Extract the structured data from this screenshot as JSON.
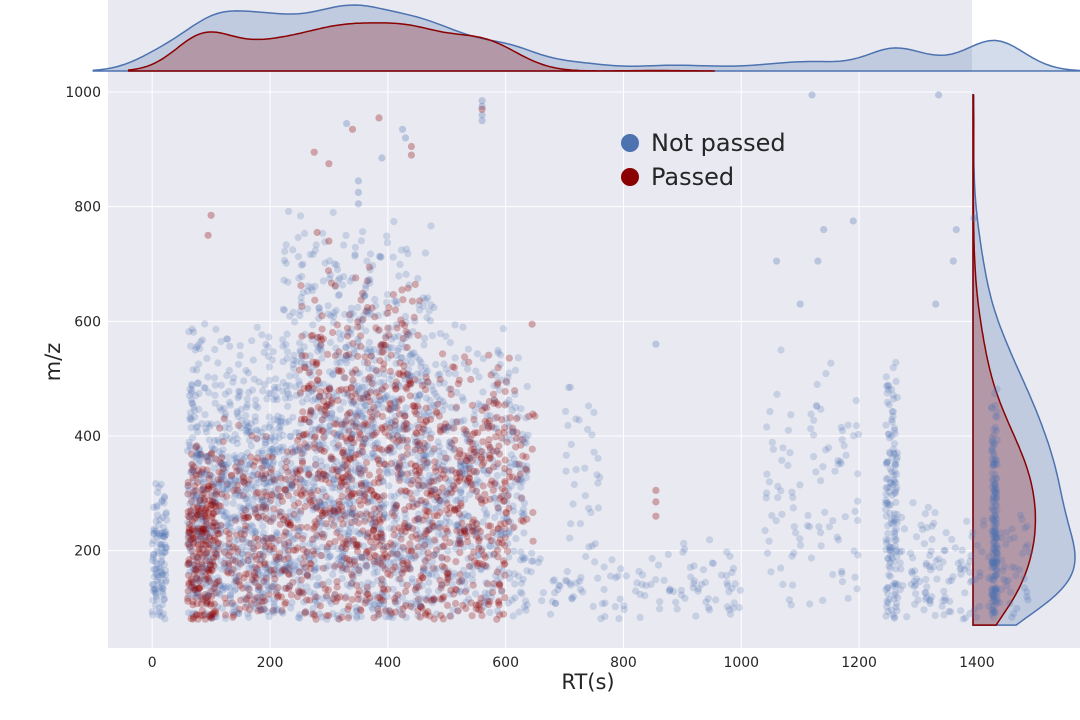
{
  "chart_data": {
    "type": "scatter",
    "title": "",
    "xlabel": "RT(s)",
    "ylabel": "m/z",
    "xlim": [
      -75,
      1575
    ],
    "ylim": [
      30,
      1035
    ],
    "x_ticks": [
      "0",
      "200",
      "400",
      "600",
      "800",
      "1000",
      "1200",
      "1400"
    ],
    "y_ticks": [
      "200",
      "400",
      "600",
      "800",
      "1000"
    ],
    "grid": true,
    "background": "#e9e9f1",
    "legend_position": "top-center",
    "marginals": {
      "top": "kde of RT(s) per series",
      "right": "kde of m/z per series"
    },
    "series": [
      {
        "name": "Not passed",
        "color": "#4c72b0",
        "clusters": [
          {
            "x": [
              0,
              25
            ],
            "y": [
              80,
              330
            ],
            "n": 110
          },
          {
            "x": [
              60,
              220
            ],
            "y": [
              80,
              620
            ],
            "n": 700
          },
          {
            "x": [
              220,
              480
            ],
            "y": [
              80,
              800
            ],
            "n": 1100
          },
          {
            "x": [
              480,
              640
            ],
            "y": [
              80,
              620
            ],
            "n": 380
          },
          {
            "x": [
              640,
              1000
            ],
            "y": [
              80,
              220
            ],
            "n": 120
          },
          {
            "x": [
              700,
              760
            ],
            "y": [
              200,
              520
            ],
            "n": 30
          },
          {
            "x": [
              1040,
              1200
            ],
            "y": [
              80,
              600
            ],
            "n": 100
          },
          {
            "x": [
              1245,
              1265
            ],
            "y": [
              80,
              560
            ],
            "n": 140
          },
          {
            "x": [
              1425,
              1435
            ],
            "y": [
              80,
              500
            ],
            "n": 170
          },
          {
            "x": [
              1260,
              1490
            ],
            "y": [
              80,
              300
            ],
            "n": 160
          }
        ],
        "points": [
          [
            425,
            935
          ],
          [
            430,
            920
          ],
          [
            560,
            985
          ],
          [
            560,
            975
          ],
          [
            560,
            960
          ],
          [
            560,
            950
          ],
          [
            330,
            945
          ],
          [
            1120,
            995
          ],
          [
            1335,
            995
          ],
          [
            1395,
            780
          ],
          [
            1190,
            775
          ],
          [
            1140,
            760
          ],
          [
            1365,
            760
          ],
          [
            1100,
            630
          ],
          [
            1330,
            630
          ],
          [
            1130,
            705
          ],
          [
            1360,
            705
          ],
          [
            350,
            845
          ],
          [
            350,
            825
          ],
          [
            350,
            805
          ],
          [
            390,
            885
          ],
          [
            855,
            560
          ],
          [
            1060,
            705
          ]
        ]
      },
      {
        "name": "Passed",
        "color": "#8b0000",
        "clusters": [
          {
            "x": [
              60,
              110
            ],
            "y": [
              80,
              400
            ],
            "n": 260
          },
          {
            "x": [
              110,
              250
            ],
            "y": [
              80,
              450
            ],
            "n": 260
          },
          {
            "x": [
              250,
              460
            ],
            "y": [
              80,
              720
            ],
            "n": 700
          },
          {
            "x": [
              460,
              600
            ],
            "y": [
              80,
              560
            ],
            "n": 360
          },
          {
            "x": [
              600,
              650
            ],
            "y": [
              190,
              560
            ],
            "n": 40
          }
        ],
        "points": [
          [
            100,
            785
          ],
          [
            95,
            750
          ],
          [
            385,
            955
          ],
          [
            340,
            935
          ],
          [
            275,
            895
          ],
          [
            300,
            875
          ],
          [
            440,
            905
          ],
          [
            440,
            890
          ],
          [
            560,
            970
          ],
          [
            645,
            595
          ],
          [
            855,
            305
          ],
          [
            855,
            285
          ],
          [
            855,
            260
          ],
          [
            280,
            755
          ],
          [
            300,
            740
          ]
        ]
      }
    ]
  }
}
